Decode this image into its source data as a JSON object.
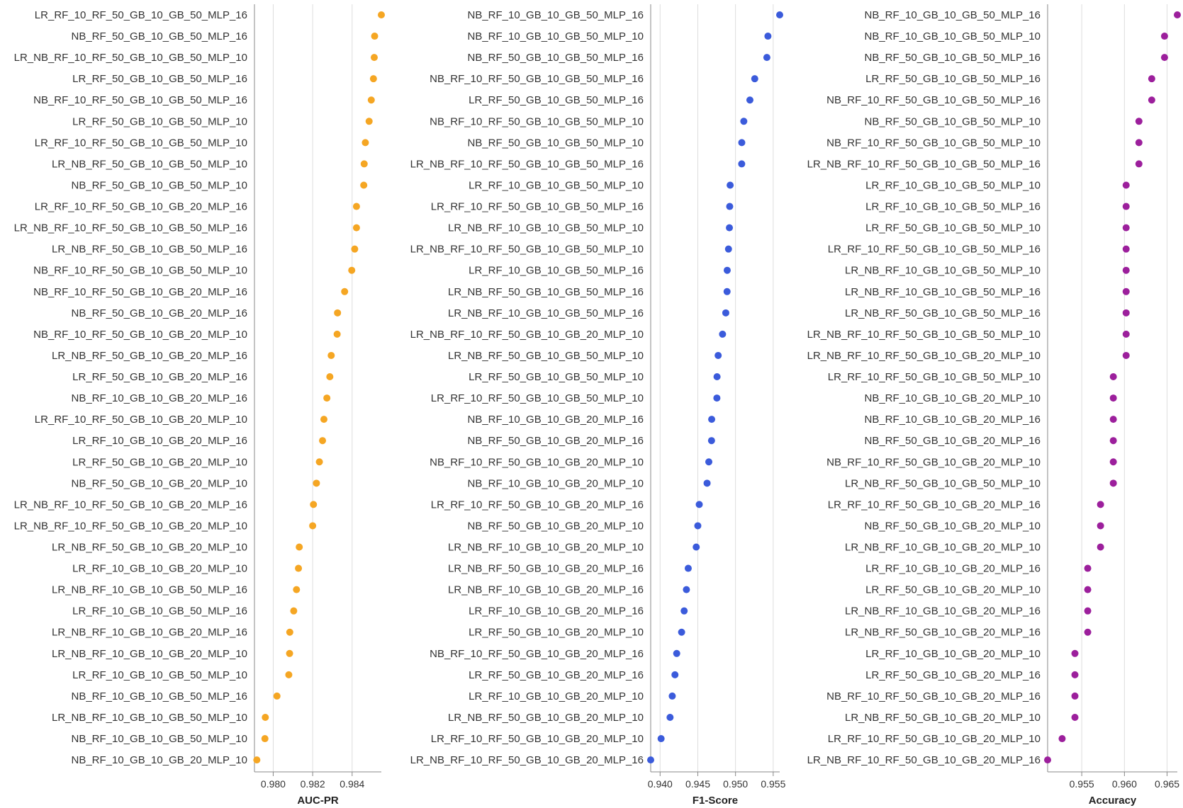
{
  "chart_data": [
    {
      "type": "scatter",
      "xlabel": "AUC-PR",
      "color": "#f5a623",
      "ticks": [
        0.98,
        0.982,
        0.984
      ],
      "tick_labels": [
        "0.980",
        "0.982",
        "0.984"
      ],
      "xlim": [
        0.97905,
        0.98548
      ],
      "grid": true,
      "categories": [
        "LR_RF_10_RF_50_GB_10_GB_50_MLP_16",
        "NB_RF_50_GB_10_GB_50_MLP_16",
        "LR_NB_RF_10_RF_50_GB_10_GB_50_MLP_10",
        "LR_RF_50_GB_10_GB_50_MLP_16",
        "NB_RF_10_RF_50_GB_10_GB_50_MLP_16",
        "LR_RF_50_GB_10_GB_50_MLP_10",
        "LR_RF_10_RF_50_GB_10_GB_50_MLP_10",
        "LR_NB_RF_50_GB_10_GB_50_MLP_10",
        "NB_RF_50_GB_10_GB_50_MLP_10",
        "LR_RF_10_RF_50_GB_10_GB_20_MLP_16",
        "LR_NB_RF_10_RF_50_GB_10_GB_50_MLP_16",
        "LR_NB_RF_50_GB_10_GB_50_MLP_16",
        "NB_RF_10_RF_50_GB_10_GB_50_MLP_10",
        "NB_RF_10_RF_50_GB_10_GB_20_MLP_16",
        "NB_RF_50_GB_10_GB_20_MLP_16",
        "NB_RF_10_RF_50_GB_10_GB_20_MLP_10",
        "LR_NB_RF_50_GB_10_GB_20_MLP_16",
        "LR_RF_50_GB_10_GB_20_MLP_16",
        "NB_RF_10_GB_10_GB_20_MLP_16",
        "LR_RF_10_RF_50_GB_10_GB_20_MLP_10",
        "LR_RF_10_GB_10_GB_20_MLP_16",
        "LR_RF_50_GB_10_GB_20_MLP_10",
        "NB_RF_50_GB_10_GB_20_MLP_10",
        "LR_NB_RF_10_RF_50_GB_10_GB_20_MLP_16",
        "LR_NB_RF_10_RF_50_GB_10_GB_20_MLP_10",
        "LR_NB_RF_50_GB_10_GB_20_MLP_10",
        "LR_RF_10_GB_10_GB_20_MLP_10",
        "LR_NB_RF_10_GB_10_GB_50_MLP_16",
        "LR_RF_10_GB_10_GB_50_MLP_16",
        "LR_NB_RF_10_GB_10_GB_20_MLP_16",
        "LR_NB_RF_10_GB_10_GB_20_MLP_10",
        "LR_RF_10_GB_10_GB_50_MLP_10",
        "NB_RF_10_GB_10_GB_50_MLP_16",
        "LR_NB_RF_10_GB_10_GB_50_MLP_10",
        "NB_RF_10_GB_10_GB_50_MLP_10",
        "NB_RF_10_GB_10_GB_20_MLP_10"
      ],
      "values": [
        0.98548,
        0.98514,
        0.98512,
        0.98508,
        0.98497,
        0.98486,
        0.98467,
        0.98461,
        0.98459,
        0.98422,
        0.98422,
        0.98413,
        0.98398,
        0.98362,
        0.98326,
        0.98324,
        0.98294,
        0.98287,
        0.98272,
        0.98257,
        0.9825,
        0.98234,
        0.98219,
        0.98204,
        0.982,
        0.98132,
        0.98128,
        0.98118,
        0.98104,
        0.98084,
        0.98083,
        0.98079,
        0.98019,
        0.9796,
        0.97958,
        0.97917
      ]
    },
    {
      "type": "scatter",
      "xlabel": "F1-Score",
      "color": "#3b5bdb",
      "ticks": [
        0.94,
        0.945,
        0.95,
        0.955
      ],
      "tick_labels": [
        "0.940",
        "0.945",
        "0.950",
        "0.955"
      ],
      "xlim": [
        0.93875,
        0.95586
      ],
      "grid": true,
      "categories": [
        "NB_RF_10_GB_10_GB_50_MLP_16",
        "NB_RF_10_GB_10_GB_50_MLP_10",
        "NB_RF_50_GB_10_GB_50_MLP_16",
        "NB_RF_10_RF_50_GB_10_GB_50_MLP_16",
        "LR_RF_50_GB_10_GB_50_MLP_16",
        "NB_RF_10_RF_50_GB_10_GB_50_MLP_10",
        "NB_RF_50_GB_10_GB_50_MLP_10",
        "LR_NB_RF_10_RF_50_GB_10_GB_50_MLP_16",
        "LR_RF_10_GB_10_GB_50_MLP_10",
        "LR_RF_10_RF_50_GB_10_GB_50_MLP_16",
        "LR_NB_RF_10_GB_10_GB_50_MLP_10",
        "LR_NB_RF_10_RF_50_GB_10_GB_50_MLP_10",
        "LR_RF_10_GB_10_GB_50_MLP_16",
        "LR_NB_RF_50_GB_10_GB_50_MLP_16",
        "LR_NB_RF_10_GB_10_GB_50_MLP_16",
        "LR_NB_RF_10_RF_50_GB_10_GB_20_MLP_10",
        "LR_NB_RF_50_GB_10_GB_50_MLP_10",
        "LR_RF_50_GB_10_GB_50_MLP_10",
        "LR_RF_10_RF_50_GB_10_GB_50_MLP_10",
        "NB_RF_10_GB_10_GB_20_MLP_16",
        "NB_RF_50_GB_10_GB_20_MLP_16",
        "NB_RF_10_RF_50_GB_10_GB_20_MLP_10",
        "NB_RF_10_GB_10_GB_20_MLP_10",
        "LR_RF_10_RF_50_GB_10_GB_20_MLP_16",
        "NB_RF_50_GB_10_GB_20_MLP_10",
        "LR_NB_RF_10_GB_10_GB_20_MLP_10",
        "LR_NB_RF_50_GB_10_GB_20_MLP_16",
        "LR_NB_RF_10_GB_10_GB_20_MLP_16",
        "LR_RF_10_GB_10_GB_20_MLP_16",
        "LR_RF_50_GB_10_GB_20_MLP_10",
        "NB_RF_10_RF_50_GB_10_GB_20_MLP_16",
        "LR_RF_50_GB_10_GB_20_MLP_16",
        "LR_RF_10_GB_10_GB_20_MLP_10",
        "LR_NB_RF_50_GB_10_GB_20_MLP_10",
        "LR_RF_10_RF_50_GB_10_GB_20_MLP_10",
        "LR_NB_RF_10_RF_50_GB_10_GB_20_MLP_16"
      ],
      "values": [
        0.95586,
        0.9543,
        0.95416,
        0.95255,
        0.95191,
        0.9511,
        0.95083,
        0.95082,
        0.94929,
        0.94923,
        0.94919,
        0.94907,
        0.9489,
        0.94888,
        0.94871,
        0.94828,
        0.9477,
        0.94755,
        0.94753,
        0.94684,
        0.94682,
        0.94646,
        0.94623,
        0.94519,
        0.945,
        0.94479,
        0.94373,
        0.94349,
        0.94319,
        0.94285,
        0.9422,
        0.94197,
        0.94161,
        0.94132,
        0.94013,
        0.93875
      ]
    },
    {
      "type": "scatter",
      "xlabel": "Accuracy",
      "color": "#9c1f9c",
      "ticks": [
        0.955,
        0.96,
        0.965
      ],
      "tick_labels": [
        "0.955",
        "0.960",
        "0.965"
      ],
      "xlim": [
        0.951,
        0.9662
      ],
      "grid": true,
      "categories": [
        "NB_RF_10_GB_10_GB_50_MLP_16",
        "NB_RF_10_GB_10_GB_50_MLP_10",
        "NB_RF_50_GB_10_GB_50_MLP_16",
        "LR_RF_50_GB_10_GB_50_MLP_16",
        "NB_RF_10_RF_50_GB_10_GB_50_MLP_16",
        "NB_RF_50_GB_10_GB_50_MLP_10",
        "NB_RF_10_RF_50_GB_10_GB_50_MLP_10",
        "LR_NB_RF_10_RF_50_GB_10_GB_50_MLP_16",
        "LR_RF_10_GB_10_GB_50_MLP_10",
        "LR_RF_10_GB_10_GB_50_MLP_16",
        "LR_RF_50_GB_10_GB_50_MLP_10",
        "LR_RF_10_RF_50_GB_10_GB_50_MLP_16",
        "LR_NB_RF_10_GB_10_GB_50_MLP_10",
        "LR_NB_RF_10_GB_10_GB_50_MLP_16",
        "LR_NB_RF_50_GB_10_GB_50_MLP_16",
        "LR_NB_RF_10_RF_50_GB_10_GB_50_MLP_10",
        "LR_NB_RF_10_RF_50_GB_10_GB_20_MLP_10",
        "LR_RF_10_RF_50_GB_10_GB_50_MLP_10",
        "NB_RF_10_GB_10_GB_20_MLP_10",
        "NB_RF_10_GB_10_GB_20_MLP_16",
        "NB_RF_50_GB_10_GB_20_MLP_16",
        "NB_RF_10_RF_50_GB_10_GB_20_MLP_10",
        "LR_NB_RF_50_GB_10_GB_50_MLP_10",
        "LR_RF_10_RF_50_GB_10_GB_20_MLP_16",
        "NB_RF_50_GB_10_GB_20_MLP_10",
        "LR_NB_RF_10_GB_10_GB_20_MLP_10",
        "LR_RF_10_GB_10_GB_20_MLP_16",
        "LR_RF_50_GB_10_GB_20_MLP_10",
        "LR_NB_RF_10_GB_10_GB_20_MLP_16",
        "LR_NB_RF_50_GB_10_GB_20_MLP_16",
        "LR_RF_10_GB_10_GB_20_MLP_10",
        "LR_RF_50_GB_10_GB_20_MLP_16",
        "NB_RF_10_RF_50_GB_10_GB_20_MLP_16",
        "LR_NB_RF_50_GB_10_GB_20_MLP_10",
        "LR_RF_10_RF_50_GB_10_GB_20_MLP_10",
        "LR_NB_RF_10_RF_50_GB_10_GB_20_MLP_16"
      ],
      "values": [
        0.9662,
        0.9647,
        0.9647,
        0.9632,
        0.9632,
        0.9617,
        0.9617,
        0.9617,
        0.9602,
        0.9602,
        0.9602,
        0.9602,
        0.9602,
        0.9602,
        0.9602,
        0.9602,
        0.9602,
        0.9587,
        0.9587,
        0.9587,
        0.9587,
        0.9587,
        0.9587,
        0.9572,
        0.9572,
        0.9572,
        0.9557,
        0.9557,
        0.9557,
        0.9557,
        0.9542,
        0.9542,
        0.9542,
        0.9542,
        0.9527,
        0.951
      ]
    }
  ]
}
